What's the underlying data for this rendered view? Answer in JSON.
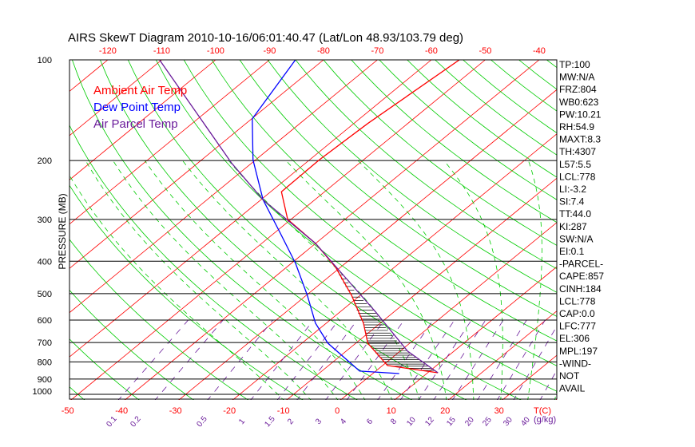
{
  "chart_data": {
    "type": "line",
    "title": "AIRS SkewT Diagram 2010-10-16/06:01:40.47 (Lat/Lon 48.93/103.79 deg)",
    "ylabel": "PRESSURE (MB)",
    "xlabel": "T(C)",
    "mixing_ratio_label": "(g/kg)",
    "pressure_ticks": [
      100,
      200,
      300,
      400,
      500,
      600,
      700,
      800,
      900,
      1000
    ],
    "bottom_temp_ticks": [
      -50,
      -40,
      -30,
      -20,
      -10,
      0,
      10,
      20,
      30
    ],
    "top_temp_ticks": [
      -120,
      -110,
      -100,
      -90,
      -80,
      -70,
      -60,
      -50,
      -40
    ],
    "mixing_ratio_ticks": [
      "0.1",
      "0.2",
      "0.5",
      "1",
      "1.5",
      "2",
      "3",
      "4",
      "6",
      "8",
      "10",
      "12",
      "15",
      "20",
      "25",
      "30",
      "40"
    ],
    "ylim": [
      1050,
      100
    ],
    "legend": [
      {
        "name": "Ambient Air Temp",
        "color": "#ff0000"
      },
      {
        "name": "Dew Point Temp",
        "color": "#0000ff"
      },
      {
        "name": "Air Parcel Temp",
        "color": "#6a1b9a"
      }
    ],
    "series": [
      {
        "name": "Ambient Air Temp",
        "pressure": [
          862,
          820,
          703,
          613,
          506,
          417,
          354,
          300,
          248,
          199,
          155,
          100
        ],
        "temp": [
          11.9,
          0.9,
          -7.8,
          -13.1,
          -21.6,
          -30.9,
          -40,
          -50.6,
          -58,
          -58.2,
          -57.4,
          -54.8
        ]
      },
      {
        "name": "Dew Point Temp",
        "pressure": [
          867,
          852,
          703,
          613,
          506,
          406,
          326,
          262,
          199,
          150,
          100
        ],
        "temp": [
          4.9,
          -3,
          -15.2,
          -22,
          -29.8,
          -39.2,
          -49.4,
          -59.6,
          -70.5,
          -79.9,
          -85.2
        ]
      },
      {
        "name": "Air Parcel Temp",
        "pressure": [
          862,
          743,
          565,
          441,
          354,
          262,
          204,
          100
        ],
        "temp": [
          11.9,
          1.4,
          -13.6,
          -27.6,
          -40,
          -59.6,
          -73.6,
          -110.4
        ]
      }
    ],
    "indices": [
      "TP:100",
      "MW:N/A",
      "FRZ:804",
      "WB0:623",
      "PW:10.21",
      "RH:54.9",
      "MAXT:8.3",
      "TH:4307",
      "L57:5.5",
      "LCL:778",
      "LI:-3.2",
      "SI:7.4",
      "TT:44.0",
      "KI:287",
      "SW:N/A",
      "EI:0.1",
      "-PARCEL-",
      "CAPE:857",
      "CINH:184",
      "LCL:778",
      "CAP:0.0",
      "LFC:777",
      "EL:306",
      "MPL:197",
      "-WIND-",
      "NOT",
      "AVAIL"
    ]
  }
}
